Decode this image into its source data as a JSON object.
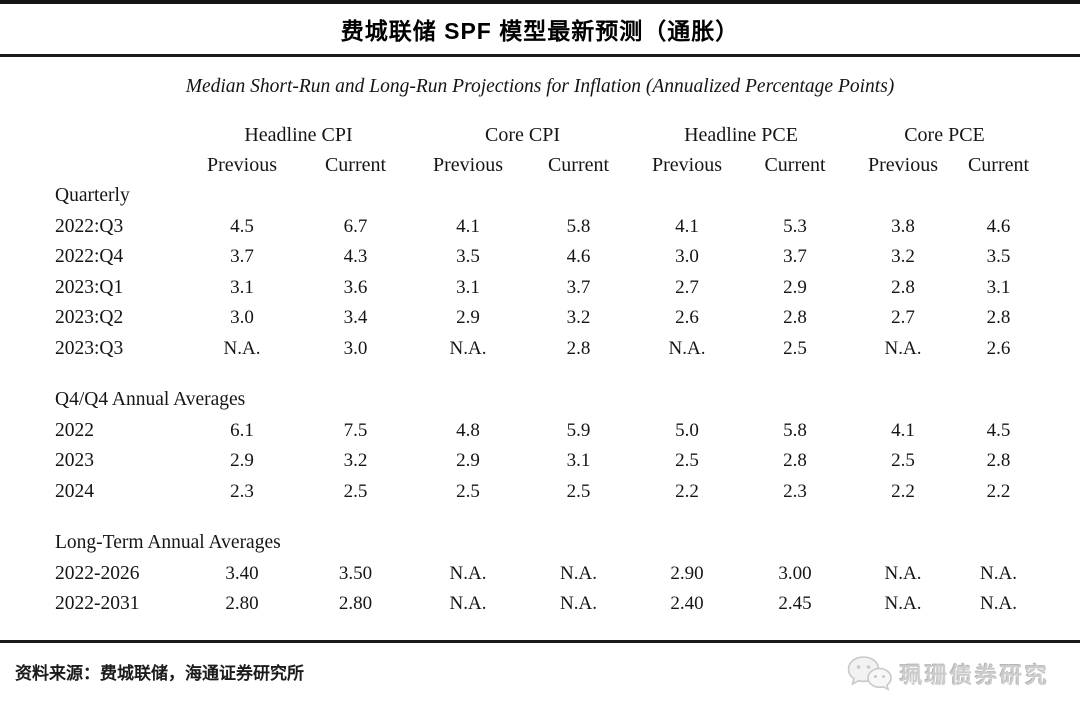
{
  "chart_data": {
    "type": "table",
    "title": "费城联储 SPF 模型最新预测（通胀）",
    "subtitle": "Median Short-Run and Long-Run Projections for Inflation (Annualized Percentage Points)",
    "column_groups": [
      {
        "label": "Headline CPI"
      },
      {
        "label": "Core CPI"
      },
      {
        "label": "Headline PCE"
      },
      {
        "label": "Core PCE"
      }
    ],
    "sub_columns": [
      "Previous",
      "Current"
    ],
    "sections": [
      {
        "label": "Quarterly",
        "rows": [
          {
            "label": "2022:Q3",
            "values": [
              "4.5",
              "6.7",
              "4.1",
              "5.8",
              "4.1",
              "5.3",
              "3.8",
              "4.6"
            ]
          },
          {
            "label": "2022:Q4",
            "values": [
              "3.7",
              "4.3",
              "3.5",
              "4.6",
              "3.0",
              "3.7",
              "3.2",
              "3.5"
            ]
          },
          {
            "label": "2023:Q1",
            "values": [
              "3.1",
              "3.6",
              "3.1",
              "3.7",
              "2.7",
              "2.9",
              "2.8",
              "3.1"
            ]
          },
          {
            "label": "2023:Q2",
            "values": [
              "3.0",
              "3.4",
              "2.9",
              "3.2",
              "2.6",
              "2.8",
              "2.7",
              "2.8"
            ]
          },
          {
            "label": "2023:Q3",
            "values": [
              "N.A.",
              "3.0",
              "N.A.",
              "2.8",
              "N.A.",
              "2.5",
              "N.A.",
              "2.6"
            ]
          }
        ]
      },
      {
        "label": "Q4/Q4 Annual Averages",
        "rows": [
          {
            "label": "2022",
            "values": [
              "6.1",
              "7.5",
              "4.8",
              "5.9",
              "5.0",
              "5.8",
              "4.1",
              "4.5"
            ]
          },
          {
            "label": "2023",
            "values": [
              "2.9",
              "3.2",
              "2.9",
              "3.1",
              "2.5",
              "2.8",
              "2.5",
              "2.8"
            ]
          },
          {
            "label": "2024",
            "values": [
              "2.3",
              "2.5",
              "2.5",
              "2.5",
              "2.2",
              "2.3",
              "2.2",
              "2.2"
            ]
          }
        ]
      },
      {
        "label": "Long-Term Annual Averages",
        "rows": [
          {
            "label": "2022-2026",
            "values": [
              "3.40",
              "3.50",
              "N.A.",
              "N.A.",
              "2.90",
              "3.00",
              "N.A.",
              "N.A."
            ]
          },
          {
            "label": "2022-2031",
            "values": [
              "2.80",
              "2.80",
              "N.A.",
              "N.A.",
              "2.40",
              "2.45",
              "N.A.",
              "N.A."
            ]
          }
        ]
      }
    ]
  },
  "footer": {
    "source": "资料来源：费城联储，海通证券研究所",
    "watermark": "珮珊债券研究",
    "watermark_icon": "wechat-icon"
  }
}
